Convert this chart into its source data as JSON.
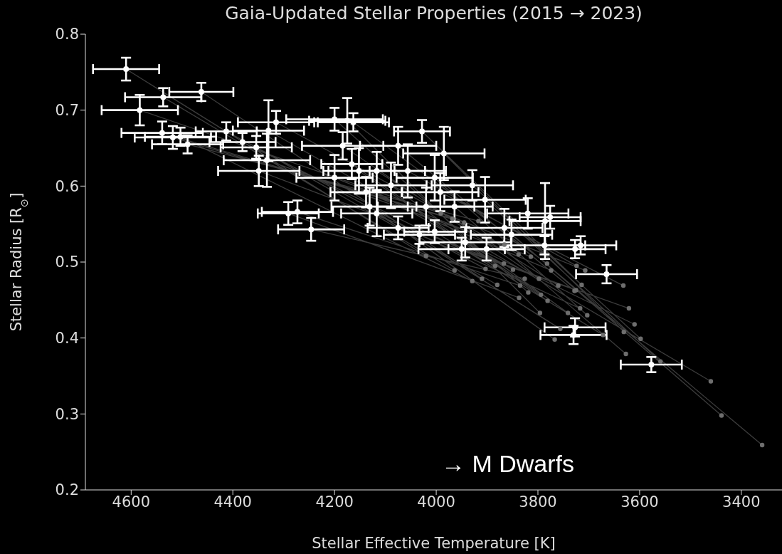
{
  "chart_data": {
    "type": "scatter",
    "title": "Gaia-Updated Stellar Properties (2015 → 2023)",
    "xlabel": "Stellar Effective Temperature [K]",
    "ylabel": "Stellar Radius [R$_{⊙}$]",
    "annotations": [
      "→ M Dwarfs"
    ],
    "xlim": [
      4690,
      3320
    ],
    "xticks": [
      4600,
      4400,
      4200,
      4000,
      3800,
      3600,
      3400
    ],
    "ylim": [
      0.2,
      0.8
    ],
    "yticks": [
      0.2,
      0.3,
      0.4,
      0.5,
      0.6,
      0.7,
      0.8
    ],
    "grid": false,
    "legend": false,
    "series": [
      {
        "type": "line",
        "color": "#3c3c3c",
        "line_style": "solid",
        "marker": "none",
        "x": [
          4610,
          4020,
          null,
          4583,
          3991,
          null,
          4539,
          3968,
          null,
          4537,
          3964,
          null,
          4518,
          3945,
          null,
          4503,
          3929,
          null,
          4489,
          3917,
          null,
          4462,
          3910,
          null,
          4413,
          3903,
          null,
          4381,
          3884,
          null,
          4354,
          3880,
          null,
          4349,
          3867,
          null,
          4333,
          3866,
          null,
          4330,
          3849,
          null,
          4315,
          3838,
          null,
          4291,
          3837,
          null,
          4273,
          3835,
          null,
          4246,
          3826,
          null,
          4200,
          3819,
          null,
          4200,
          3814,
          null,
          4184,
          3798,
          null,
          4175,
          3796,
          null,
          4166,
          3794,
          null,
          4163,
          3782,
          null,
          4152,
          3781,
          null,
          4138,
          3774,
          null,
          4131,
          3767,
          null,
          4117,
          3760,
          null,
          4117,
          3756,
          null,
          4089,
          3741,
          null,
          4075,
          3728,
          null,
          4075,
          3725,
          null,
          4056,
          3724,
          null,
          4033,
          3717,
          null,
          4028,
          3714,
          null,
          4020,
          3707,
          null,
          4003,
          3703,
          null,
          4003,
          3672,
          null,
          3992,
          3632,
          null,
          3985,
          3631,
          null,
          3964,
          3627,
          null,
          3950,
          3621,
          null,
          3943,
          3610,
          null,
          3929,
          3598,
          null,
          3904,
          3559,
          null,
          3901,
          3460,
          null,
          3866,
          3439,
          null,
          3852,
          3359
        ],
        "values": [
          0.754,
          0.508,
          null,
          0.7,
          0.564,
          null,
          0.67,
          0.557,
          null,
          0.717,
          0.489,
          null,
          0.664,
          0.552,
          null,
          0.665,
          0.475,
          null,
          0.655,
          0.554,
          null,
          0.724,
          0.478,
          null,
          0.672,
          0.491,
          null,
          0.658,
          0.495,
          null,
          0.651,
          0.47,
          null,
          0.62,
          0.498,
          null,
          0.634,
          0.523,
          null,
          0.673,
          0.49,
          null,
          0.684,
          0.51,
          null,
          0.564,
          0.453,
          null,
          0.566,
          0.469,
          null,
          0.543,
          0.478,
          null,
          0.688,
          0.46,
          null,
          0.611,
          0.507,
          null,
          0.653,
          0.478,
          null,
          0.686,
          0.433,
          null,
          0.629,
          0.457,
          null,
          0.684,
          0.498,
          null,
          0.62,
          0.449,
          null,
          0.592,
          0.489,
          null,
          0.573,
          0.398,
          null,
          0.62,
          0.469,
          null,
          0.564,
          0.412,
          null,
          0.601,
          0.433,
          null,
          0.653,
          0.462,
          null,
          0.545,
          0.463,
          null,
          0.62,
          0.495,
          null,
          0.536,
          0.439,
          null,
          0.672,
          0.47,
          null,
          0.573,
          0.489,
          null,
          0.611,
          0.43,
          null,
          0.54,
          0.404,
          null,
          0.592,
          0.469,
          null,
          0.643,
          0.408,
          null,
          0.573,
          0.379,
          null,
          0.517,
          0.439,
          null,
          0.526,
          0.418,
          null,
          0.601,
          0.399,
          null,
          0.582,
          0.369,
          null,
          0.517,
          0.343,
          null,
          0.545,
          0.298,
          null,
          0.536,
          0.259
        ]
      },
      {
        "type": "scatter",
        "color": "#6e6e6e",
        "marker": "circle",
        "x": [
          4020,
          3991,
          3968,
          3964,
          3945,
          3929,
          3917,
          3910,
          3903,
          3884,
          3880,
          3867,
          3866,
          3849,
          3838,
          3837,
          3835,
          3826,
          3819,
          3814,
          3798,
          3796,
          3794,
          3782,
          3781,
          3774,
          3767,
          3760,
          3756,
          3741,
          3728,
          3725,
          3724,
          3717,
          3714,
          3707,
          3703,
          3672,
          3632,
          3631,
          3627,
          3621,
          3610,
          3598,
          3559,
          3460,
          3439,
          3359
        ],
        "values": [
          0.508,
          0.564,
          0.557,
          0.489,
          0.552,
          0.475,
          0.554,
          0.478,
          0.491,
          0.495,
          0.47,
          0.498,
          0.523,
          0.49,
          0.51,
          0.453,
          0.469,
          0.478,
          0.46,
          0.507,
          0.478,
          0.433,
          0.457,
          0.498,
          0.449,
          0.489,
          0.398,
          0.469,
          0.412,
          0.433,
          0.462,
          0.463,
          0.495,
          0.439,
          0.47,
          0.489,
          0.43,
          0.404,
          0.469,
          0.408,
          0.379,
          0.439,
          0.418,
          0.399,
          0.369,
          0.343,
          0.298,
          0.259
        ]
      },
      {
        "color": "#ffffff",
        "marker": "circle",
        "x": [
          4610,
          4462,
          4537,
          4583,
          4539,
          4518,
          4503,
          4489,
          4413,
          4381,
          4354,
          4315,
          4330,
          4349,
          4333,
          4291,
          4273,
          4246,
          4200,
          4175,
          4163,
          4184,
          4166,
          4200,
          4138,
          4075,
          4028,
          3985,
          4003,
          4075,
          4033,
          4003,
          3964,
          3904,
          3950,
          3901,
          3852,
          3866,
          3820,
          3943,
          4020,
          4131,
          4089,
          4056,
          4117,
          4152,
          3786,
          3776,
          3727,
          3716,
          3787,
          3665,
          3727,
          3730,
          3577,
          4117,
          3992,
          3929
        ],
        "values": [
          0.754,
          0.724,
          0.717,
          0.7,
          0.67,
          0.664,
          0.665,
          0.655,
          0.672,
          0.658,
          0.651,
          0.684,
          0.673,
          0.62,
          0.634,
          0.564,
          0.566,
          0.543,
          0.688,
          0.686,
          0.684,
          0.653,
          0.629,
          0.611,
          0.592,
          0.653,
          0.672,
          0.643,
          0.611,
          0.545,
          0.536,
          0.54,
          0.573,
          0.582,
          0.517,
          0.517,
          0.536,
          0.545,
          0.564,
          0.526,
          0.573,
          0.573,
          0.601,
          0.62,
          0.62,
          0.62,
          0.554,
          0.559,
          0.517,
          0.522,
          0.522,
          0.484,
          0.414,
          0.404,
          0.365,
          0.564,
          0.592,
          0.601
        ],
        "xerrors": [
          65,
          63,
          75,
          75,
          80,
          75,
          70,
          70,
          60,
          65,
          70,
          75,
          70,
          80,
          85,
          60,
          70,
          65,
          95,
          75,
          70,
          80,
          60,
          75,
          70,
          75,
          55,
          80,
          75,
          60,
          70,
          60,
          75,
          80,
          85,
          75,
          80,
          75,
          80,
          90,
          95,
          75,
          70,
          75,
          95,
          70,
          70,
          60,
          60,
          70,
          80,
          60,
          60,
          65,
          60,
          70,
          75,
          80
        ],
        "errors": [
          0.015,
          0.012,
          0.012,
          0.02,
          0.015,
          0.015,
          0.012,
          0.012,
          0.012,
          0.012,
          0.015,
          0.015,
          0.04,
          0.02,
          0.035,
          0.015,
          0.015,
          0.015,
          0.015,
          0.03,
          0.012,
          0.018,
          0.02,
          0.03,
          0.02,
          0.025,
          0.015,
          0.035,
          0.03,
          0.015,
          0.012,
          0.015,
          0.02,
          0.03,
          0.015,
          0.015,
          0.02,
          0.025,
          0.02,
          0.02,
          0.025,
          0.025,
          0.03,
          0.035,
          0.025,
          0.03,
          0.05,
          0.015,
          0.012,
          0.012,
          0.012,
          0.012,
          0.012,
          0.012,
          0.01,
          0.03,
          0.025,
          0.02
        ]
      }
    ]
  }
}
